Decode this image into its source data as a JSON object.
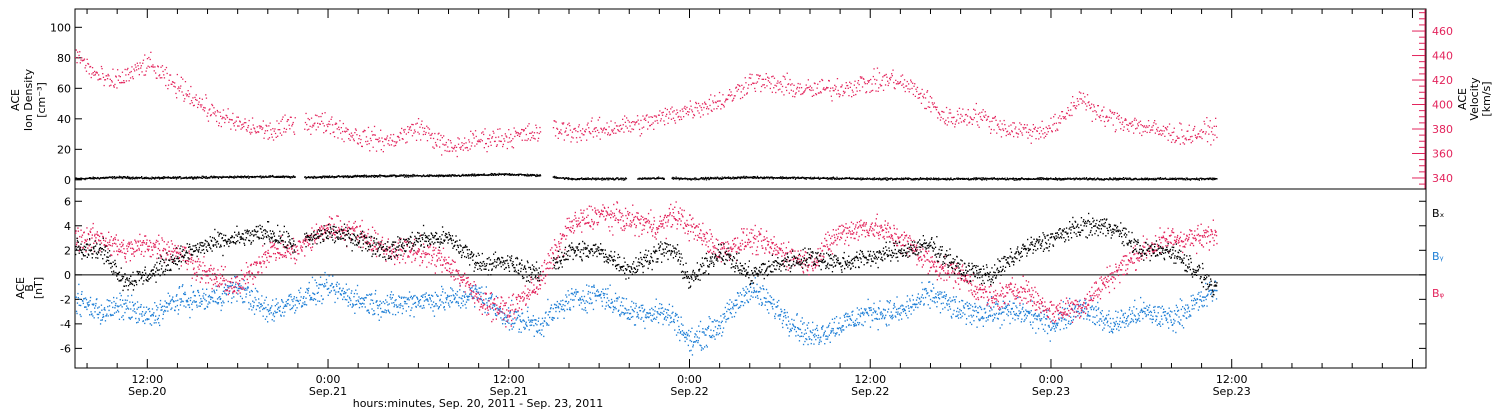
{
  "x_axis": {
    "title": "hours:minutes, Sep. 20, 2011 - Sep. 23, 2011",
    "range_hours": [
      -4.8,
      84.9
    ],
    "ticks": [
      {
        "hour": 0,
        "time": "12:00",
        "date": "Sep.20"
      },
      {
        "hour": 12,
        "time": "0:00",
        "date": "Sep.21"
      },
      {
        "hour": 24,
        "time": "12:00",
        "date": "Sep.21"
      },
      {
        "hour": 36,
        "time": "0:00",
        "date": "Sep.22"
      },
      {
        "hour": 48,
        "time": "12:00",
        "date": "Sep.22"
      },
      {
        "hour": 60,
        "time": "0:00",
        "date": "Sep.23"
      },
      {
        "hour": 72,
        "time": "12:00",
        "date": "Sep.23"
      }
    ]
  },
  "colors": {
    "density": "#000000",
    "velocity": "#e3245c",
    "bx": "#000000",
    "by": "#1f7fd6",
    "bz": "#e3245c",
    "frame": "#000000"
  },
  "chart_data": [
    {
      "type": "scatter",
      "panel": "top",
      "ylabel_left": [
        "ACE",
        "Ion Density",
        "[cm⁻³]"
      ],
      "ylabel_right": [
        "ACE",
        "Velocity",
        "[km/s]"
      ],
      "ylim_left": [
        -6,
        112
      ],
      "ylim_right": [
        331,
        478
      ],
      "yticks_left": [
        0,
        20,
        40,
        60,
        80,
        100
      ],
      "yticks_right": [
        340,
        360,
        380,
        400,
        420,
        440,
        460
      ],
      "series": [
        {
          "name": "",
          "axis": "left",
          "color": "#000000",
          "x_hours": [
            -4.8,
            -2,
            0,
            4,
            8,
            10.3,
            12.8,
            16,
            20,
            24,
            26.3,
            28,
            32,
            34.8,
            36,
            40,
            44,
            48,
            52,
            56,
            60,
            64,
            68,
            71
          ],
          "y": [
            1,
            2,
            1.5,
            2,
            2.5,
            2,
            2.5,
            3,
            3,
            4,
            3,
            1,
            1,
            1.5,
            1,
            2,
            1.5,
            1,
            1,
            1,
            1,
            1,
            1,
            1
          ],
          "gaps_hours": [
            [
              9.8,
              10.4
            ],
            [
              26.1,
              26.9
            ],
            [
              31.8,
              32.5
            ],
            [
              34.3,
              34.8
            ]
          ]
        },
        {
          "name": "",
          "axis": "right",
          "color": "#e3245c",
          "x_hours": [
            -4.8,
            -3.5,
            -2.5,
            -1,
            0,
            1.5,
            2.5,
            4,
            5.5,
            7,
            8.5,
            9.8,
            12,
            14,
            16,
            18,
            20,
            22,
            24,
            26,
            27,
            29,
            31,
            33,
            35,
            37,
            38.5,
            40,
            42,
            44,
            46,
            48,
            49.5,
            51,
            53,
            55,
            57,
            59,
            60.5,
            62,
            63,
            65,
            67,
            69,
            71
          ],
          "y": [
            442,
            425,
            418,
            426,
            434,
            418,
            412,
            396,
            386,
            381,
            378,
            387,
            385,
            374,
            370,
            382,
            364,
            372,
            374,
            377,
            380,
            378,
            382,
            385,
            393,
            400,
            405,
            420,
            416,
            412,
            414,
            418,
            421,
            412,
            389,
            392,
            381,
            378,
            385,
            408,
            392,
            386,
            379,
            375,
            380
          ],
          "gaps_hours": [
            [
              9.8,
              10.4
            ],
            [
              26.1,
              26.9
            ]
          ]
        }
      ]
    },
    {
      "type": "scatter",
      "panel": "bottom",
      "ylabel": [
        "ACE",
        "B",
        "[nT]"
      ],
      "ylim": [
        -7.6,
        7
      ],
      "yticks": [
        -6,
        -4,
        -2,
        0,
        2,
        4,
        6
      ],
      "zero_line": true,
      "series": [
        {
          "name": "Bₓ",
          "color": "#000000",
          "x_hours": [
            -4.8,
            -3,
            -1.5,
            0,
            2,
            4,
            6,
            8,
            9.8,
            12,
            14,
            16,
            18,
            20,
            22,
            24,
            26,
            28,
            30,
            32,
            34,
            35,
            36,
            38,
            40,
            42,
            44,
            46,
            48,
            50,
            52,
            54,
            56,
            58,
            60,
            62,
            64,
            66,
            68,
            70,
            71
          ],
          "y": [
            2.5,
            2,
            -0.5,
            0,
            1.5,
            2.5,
            3,
            3.5,
            2.5,
            3.5,
            3,
            2,
            3,
            3,
            1,
            1,
            0,
            2,
            2,
            0.5,
            2,
            2,
            -0.5,
            2,
            0,
            1,
            1.5,
            1,
            1.5,
            2,
            2.5,
            0.5,
            0,
            2,
            3,
            4,
            4,
            2,
            2,
            0,
            -1.5
          ],
          "gaps_hours": [
            [
              9.8,
              10.4
            ],
            [
              26.1,
              26.9
            ]
          ]
        },
        {
          "name": "Bᵧ",
          "color": "#1f7fd6",
          "x_hours": [
            -4.8,
            -3,
            -1.5,
            0,
            2,
            4,
            6,
            8,
            9.8,
            12,
            14,
            16,
            18,
            20,
            22,
            24,
            26,
            28,
            30,
            32,
            34,
            35,
            36,
            38,
            40,
            42,
            44,
            46,
            48,
            50,
            52,
            54,
            56,
            58,
            60,
            62,
            64,
            66,
            68,
            70,
            71
          ],
          "y": [
            -2,
            -3,
            -2.5,
            -3.5,
            -2,
            -2,
            -1,
            -3,
            -2,
            -1,
            -2,
            -2.5,
            -2,
            -2,
            -1.5,
            -3.5,
            -4,
            -2,
            -1.5,
            -3,
            -3,
            -3.5,
            -5.5,
            -4,
            -1,
            -3,
            -5,
            -4,
            -3,
            -3,
            -1.5,
            -3,
            -3,
            -3,
            -4,
            -2.5,
            -4,
            -3,
            -3.5,
            -2,
            -1
          ]
        },
        {
          "name": "Bᵩ",
          "color": "#e3245c",
          "x_hours": [
            -4.8,
            -3,
            -1.5,
            0,
            2,
            4,
            6,
            8,
            9.8,
            12,
            14,
            16,
            18,
            20,
            22,
            24,
            26,
            28,
            30,
            32,
            34,
            35,
            36,
            38,
            40,
            42,
            44,
            46,
            48,
            50,
            52,
            54,
            56,
            58,
            60,
            62,
            64,
            66,
            68,
            70,
            71
          ],
          "y": [
            3,
            3,
            2,
            2.5,
            2,
            0,
            -1,
            2,
            2,
            4,
            3.5,
            2,
            2,
            1,
            -2,
            -3,
            -0.5,
            4,
            5,
            4.5,
            4,
            5,
            4,
            2,
            3,
            2,
            1,
            3.5,
            4,
            3,
            1,
            0,
            -2,
            -1,
            -3,
            -2.5,
            0,
            2,
            3,
            3,
            3.5
          ]
        }
      ]
    }
  ]
}
